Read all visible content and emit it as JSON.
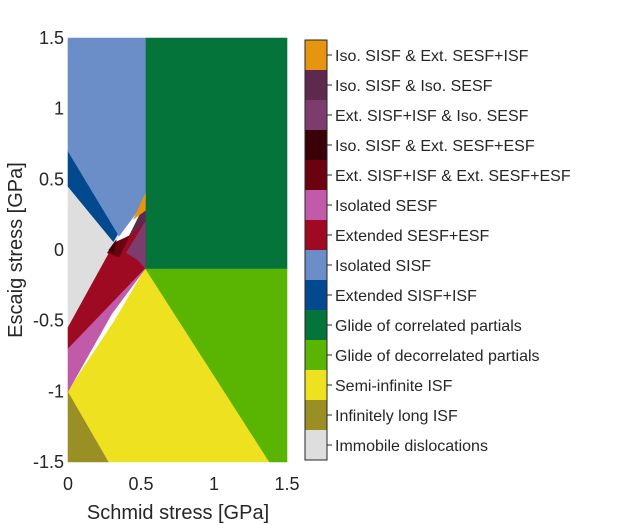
{
  "chart_data": {
    "type": "regime-map",
    "title": "",
    "xlabel": "Schmid stress [GPa]",
    "ylabel": "Escaig stress [GPa]",
    "xlim": [
      0,
      1.5
    ],
    "ylim": [
      -1.5,
      1.5
    ],
    "xticks": [
      {
        "value": 0,
        "label": "0"
      },
      {
        "value": 0.5,
        "label": "0.5"
      },
      {
        "value": 1,
        "label": "1"
      },
      {
        "value": 1.5,
        "label": "1.5"
      }
    ],
    "yticks": [
      {
        "value": 1.5,
        "label": "1.5"
      },
      {
        "value": 1,
        "label": "1"
      },
      {
        "value": 0.5,
        "label": "0.5"
      },
      {
        "value": 0,
        "label": "0"
      },
      {
        "value": -0.5,
        "label": "-0.5"
      },
      {
        "value": -1,
        "label": "-1"
      },
      {
        "value": -1.5,
        "label": "-1.5"
      }
    ],
    "grid": false,
    "legend_position": "right",
    "regions": [
      {
        "key": "immobile",
        "color": "#dedede",
        "polygon": [
          [
            0,
            0.45
          ],
          [
            0.35,
            0.1
          ],
          [
            0.32,
            0.05
          ],
          [
            0,
            -0.55
          ]
        ]
      },
      {
        "key": "infinitely_long_isf",
        "color": "#9a8f24",
        "polygon": [
          [
            0,
            -1
          ],
          [
            0.28,
            -1.5
          ],
          [
            0,
            -1.5
          ]
        ]
      },
      {
        "key": "semi_infinite_isf",
        "color": "#eee220",
        "polygon": [
          [
            0.53,
            -0.13
          ],
          [
            1.38,
            -1.5
          ],
          [
            0.28,
            -1.5
          ],
          [
            0,
            -1
          ],
          [
            0.32,
            -0.5
          ]
        ]
      },
      {
        "key": "glide_decorrelated",
        "color": "#5ab503",
        "polygon": [
          [
            0.53,
            -0.13
          ],
          [
            1.5,
            -0.13
          ],
          [
            1.5,
            -1.5
          ],
          [
            1.38,
            -1.5
          ]
        ]
      },
      {
        "key": "glide_correlated",
        "color": "#05743b",
        "polygon": [
          [
            0.53,
            1.5
          ],
          [
            1.5,
            1.5
          ],
          [
            1.5,
            -0.13
          ],
          [
            0.53,
            -0.13
          ]
        ]
      },
      {
        "key": "extended_sisf_isf",
        "color": "#02498f",
        "polygon": [
          [
            0,
            0.7
          ],
          [
            0.35,
            0.13
          ],
          [
            0.31,
            0.06
          ],
          [
            0,
            0.45
          ]
        ]
      },
      {
        "key": "isolated_sisf",
        "color": "#6b8ec9",
        "polygon": [
          [
            0,
            1.5
          ],
          [
            0.53,
            1.5
          ],
          [
            0.53,
            0.35
          ],
          [
            0.35,
            0.1
          ],
          [
            0,
            0.7
          ]
        ]
      },
      {
        "key": "extended_sesf_esf",
        "color": "#9e0a22",
        "polygon": [
          [
            0,
            -0.55
          ],
          [
            0.32,
            0.05
          ],
          [
            0.42,
            0.1
          ],
          [
            0.53,
            0.2
          ],
          [
            0.53,
            -0.13
          ],
          [
            0,
            -0.7
          ]
        ]
      },
      {
        "key": "isolated_sesf",
        "color": "#c05aa9",
        "polygon": [
          [
            0,
            -0.7
          ],
          [
            0.53,
            -0.13
          ],
          [
            0.3,
            -0.45
          ],
          [
            0,
            -1
          ]
        ]
      },
      {
        "key": "ext_sisf_isf_ext_sesf_esf",
        "color": "#6b0210",
        "polygon": [
          [
            0.32,
            0.05
          ],
          [
            0.42,
            0.1
          ],
          [
            0.35,
            -0.05
          ],
          [
            0.27,
            -0.02
          ]
        ]
      },
      {
        "key": "iso_sisf_ext_sesf_esf",
        "color": "#3a0008",
        "polygon": [
          [
            0.28,
            0.0
          ],
          [
            0.33,
            0.07
          ],
          [
            0.31,
            -0.03
          ]
        ]
      },
      {
        "key": "ext_sisf_isf_iso_sesf",
        "color": "#7c3d6e",
        "polygon": [
          [
            0.4,
            -0.02
          ],
          [
            0.53,
            0.2
          ],
          [
            0.53,
            -0.13
          ],
          [
            0.48,
            -0.07
          ]
        ]
      },
      {
        "key": "iso_sisf_iso_sesf",
        "color": "#5d2a4d",
        "polygon": [
          [
            0.42,
            0.1
          ],
          [
            0.53,
            0.33
          ],
          [
            0.53,
            0.2
          ]
        ]
      },
      {
        "key": "iso_sisf_ext_sesf_isf",
        "color": "#e59510",
        "polygon": [
          [
            0.45,
            0.22
          ],
          [
            0.53,
            0.4
          ],
          [
            0.53,
            0.28
          ]
        ]
      }
    ],
    "legend": [
      {
        "key": "iso_sisf_ext_sesf_isf",
        "label": "Iso. SISF & Ext. SESF+ISF",
        "color": "#e59510"
      },
      {
        "key": "iso_sisf_iso_sesf",
        "label": "Iso. SISF & Iso. SESF",
        "color": "#5d2a4d"
      },
      {
        "key": "ext_sisf_isf_iso_sesf",
        "label": "Ext. SISF+ISF & Iso. SESF",
        "color": "#7c3d6e"
      },
      {
        "key": "iso_sisf_ext_sesf_esf",
        "label": "Iso. SISF & Ext. SESF+ESF",
        "color": "#3a0008"
      },
      {
        "key": "ext_sisf_isf_ext_sesf_esf",
        "label": "Ext. SISF+ISF & Ext. SESF+ESF",
        "color": "#6b0210"
      },
      {
        "key": "isolated_sesf",
        "label": "Isolated SESF",
        "color": "#c05aa9"
      },
      {
        "key": "extended_sesf_esf",
        "label": "Extended SESF+ESF",
        "color": "#9e0a22"
      },
      {
        "key": "isolated_sisf",
        "label": "Isolated SISF",
        "color": "#6b8ec9"
      },
      {
        "key": "extended_sisf_isf",
        "label": "Extended SISF+ISF",
        "color": "#02498f"
      },
      {
        "key": "glide_correlated",
        "label": "Glide of correlated partials",
        "color": "#05743b"
      },
      {
        "key": "glide_decorrelated",
        "label": "Glide of decorrelated partials",
        "color": "#5ab503"
      },
      {
        "key": "semi_infinite_isf",
        "label": "Semi-infinite ISF",
        "color": "#eee220"
      },
      {
        "key": "infinitely_long_isf",
        "label": "Infinitely long ISF",
        "color": "#9a8f24"
      },
      {
        "key": "immobile",
        "label": "Immobile dislocations",
        "color": "#dedede"
      }
    ]
  }
}
